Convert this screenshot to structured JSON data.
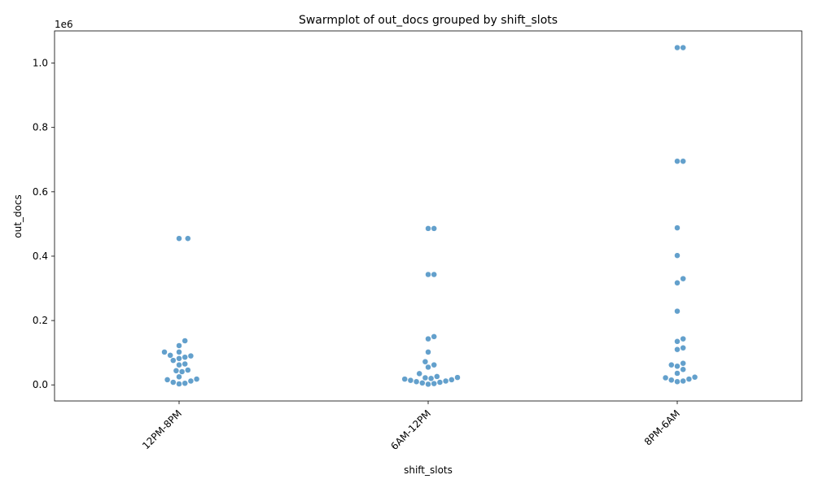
{
  "chart_data": {
    "type": "scatter",
    "subtype": "swarmplot",
    "title": "Swarmplot of out_docs grouped by shift_slots",
    "xlabel": "shift_slots",
    "ylabel": "out_docs",
    "y_offset_label": "1e6",
    "ylim": [
      -50000,
      1100000
    ],
    "yticks": [
      0,
      200000,
      400000,
      600000,
      800000,
      1000000
    ],
    "ytick_labels": [
      "0.0",
      "0.2",
      "0.4",
      "0.6",
      "0.8",
      "1.0"
    ],
    "categories": [
      "12PM-8PM",
      "6AM-12PM",
      "8PM-6AM"
    ],
    "point_color": "#5b9bc9",
    "grid": false,
    "series": [
      {
        "category": "12PM-8PM",
        "values": [
          455000,
          455000,
          137000,
          122000,
          102000,
          102000,
          92000,
          90000,
          86000,
          82000,
          76000,
          65000,
          62000,
          46000,
          44000,
          41000,
          25000,
          18000,
          16000,
          12000,
          8000,
          5000,
          3000
        ]
      },
      {
        "category": "6AM-12PM",
        "values": [
          486000,
          486000,
          343000,
          343000,
          150000,
          143000,
          102000,
          72000,
          62000,
          55000,
          35000,
          26000,
          23000,
          22000,
          20000,
          18000,
          16000,
          14000,
          12000,
          10000,
          8000,
          6000,
          4000,
          2000
        ]
      },
      {
        "category": "8PM-6AM",
        "values": [
          1048000,
          1048000,
          695000,
          695000,
          488000,
          402000,
          330000,
          317000,
          229000,
          143000,
          135000,
          115000,
          110000,
          67000,
          62000,
          58000,
          48000,
          36000,
          24000,
          22000,
          18000,
          15000,
          12000,
          10000
        ]
      }
    ]
  }
}
